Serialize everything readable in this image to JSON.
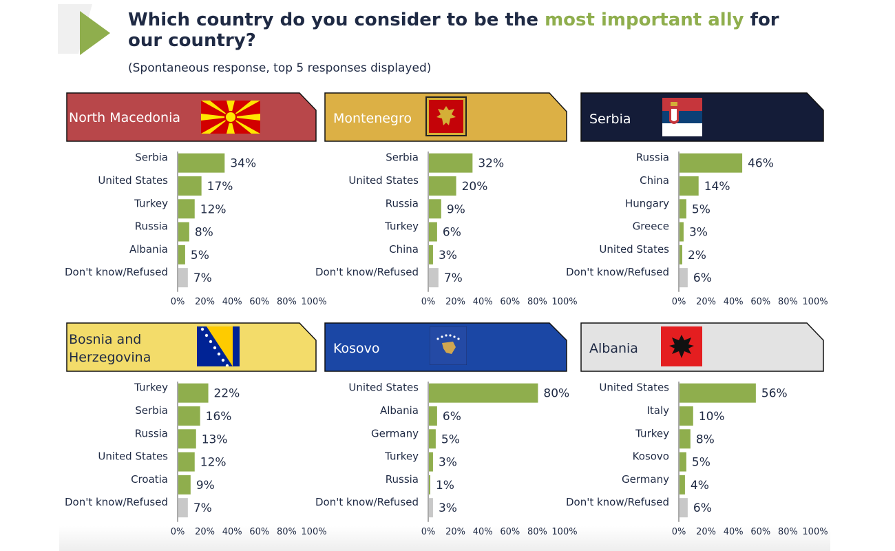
{
  "title": {
    "before": "Which country do you consider to be the ",
    "highlight": "most important ally",
    "after": " for our country?"
  },
  "subtitle": "(Spontaneous response, top 5 responses displayed)",
  "colors": {
    "bar": "#8fae4d",
    "dont_know_bar": "#c8c8c8",
    "title_highlight": "#8fae4d",
    "north_macedonia": "#b8474a",
    "montenegro": "#dcb045",
    "serbia": "#141c38",
    "bosnia": "#f3dc6a",
    "kosovo": "#1b47a5",
    "albania": "#e3e3e3"
  },
  "chart_data": [
    {
      "type": "bar",
      "orientation": "horizontal",
      "title": "North Macedonia",
      "categories": [
        "Serbia",
        "United States",
        "Turkey",
        "Russia",
        "Albania",
        "Don't know/Refused"
      ],
      "values": [
        34,
        17,
        12,
        8,
        5,
        7
      ],
      "value_labels": [
        "34%",
        "17%",
        "12%",
        "8%",
        "5%",
        "7%"
      ],
      "xlim": [
        0,
        100
      ],
      "xticks": [
        "0%",
        "20%",
        "40%",
        "60%",
        "80%",
        "100%"
      ]
    },
    {
      "type": "bar",
      "orientation": "horizontal",
      "title": "Montenegro",
      "categories": [
        "Serbia",
        "United States",
        "Russia",
        "Turkey",
        "China",
        "Don't know/Refused"
      ],
      "values": [
        32,
        20,
        9,
        6,
        3,
        7
      ],
      "value_labels": [
        "32%",
        "20%",
        "9%",
        "6%",
        "3%",
        "7%"
      ],
      "xlim": [
        0,
        100
      ],
      "xticks": [
        "0%",
        "20%",
        "40%",
        "60%",
        "80%",
        "100%"
      ]
    },
    {
      "type": "bar",
      "orientation": "horizontal",
      "title": "Serbia",
      "categories": [
        "Russia",
        "China",
        "Hungary",
        "Greece",
        "United States",
        "Don't know/Refused"
      ],
      "values": [
        46,
        14,
        5,
        3,
        2,
        6
      ],
      "value_labels": [
        "46%",
        "14%",
        "5%",
        "3%",
        "2%",
        "6%"
      ],
      "xlim": [
        0,
        100
      ],
      "xticks": [
        "0%",
        "20%",
        "40%",
        "60%",
        "80%",
        "100%"
      ]
    },
    {
      "type": "bar",
      "orientation": "horizontal",
      "title": "Bosnia and Herzegovina",
      "title_lines": [
        "Bosnia and",
        "Herzegovina"
      ],
      "categories": [
        "Turkey",
        "Serbia",
        "Russia",
        "United States",
        "Croatia",
        "Don't know/Refused"
      ],
      "values": [
        22,
        16,
        13,
        12,
        9,
        7
      ],
      "value_labels": [
        "22%",
        "16%",
        "13%",
        "12%",
        "9%",
        "7%"
      ],
      "xlim": [
        0,
        100
      ],
      "xticks": [
        "0%",
        "20%",
        "40%",
        "60%",
        "80%",
        "100%"
      ]
    },
    {
      "type": "bar",
      "orientation": "horizontal",
      "title": "Kosovo",
      "categories": [
        "United States",
        "Albania",
        "Germany",
        "Turkey",
        "Russia",
        "Don't know/Refused"
      ],
      "values": [
        80,
        6,
        5,
        3,
        1,
        3
      ],
      "value_labels": [
        "80%",
        "6%",
        "5%",
        "3%",
        "1%",
        "3%"
      ],
      "xlim": [
        0,
        100
      ],
      "xticks": [
        "0%",
        "20%",
        "40%",
        "60%",
        "80%",
        "100%"
      ]
    },
    {
      "type": "bar",
      "orientation": "horizontal",
      "title": "Albania",
      "categories": [
        "United States",
        "Italy",
        "Turkey",
        "Kosovo",
        "Germany",
        "Don't know/Refused"
      ],
      "values": [
        56,
        10,
        8,
        5,
        4,
        6
      ],
      "value_labels": [
        "56%",
        "10%",
        "8%",
        "5%",
        "4%",
        "6%"
      ],
      "xlim": [
        0,
        100
      ],
      "xticks": [
        "0%",
        "20%",
        "40%",
        "60%",
        "80%",
        "100%"
      ]
    }
  ]
}
